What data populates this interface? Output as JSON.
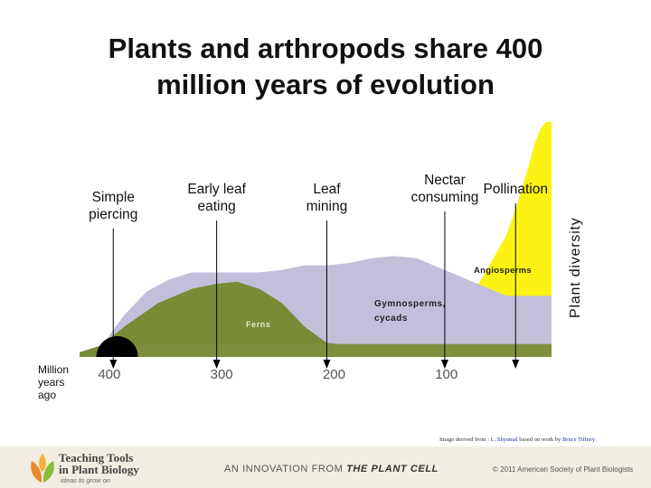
{
  "title_line1": "Plants and arthropods share 400",
  "title_line2": "million years of evolution",
  "chart_data": {
    "type": "area",
    "x_axis": {
      "label": [
        "Million",
        "years",
        "ago"
      ],
      "reversed": true,
      "range": [
        420,
        0
      ],
      "ticks": [
        "400",
        "300",
        "200",
        "100"
      ],
      "tick_values": [
        400,
        300,
        200,
        100
      ]
    },
    "y_axis": {
      "label": "Plant diversity",
      "range": [
        0,
        10
      ]
    },
    "series": [
      {
        "name": "Ferns",
        "color": "#788c36",
        "x": [
          420,
          400,
          380,
          350,
          320,
          300,
          280,
          260,
          240,
          220,
          200,
          180,
          160,
          140,
          120,
          100,
          80,
          60,
          40,
          20,
          0
        ],
        "y": [
          0.2,
          0.5,
          1.3,
          2.3,
          2.9,
          3.1,
          3.2,
          2.9,
          2.3,
          1.3,
          0.6,
          0.5,
          0.5,
          0.5,
          0.5,
          0.5,
          0.5,
          0.5,
          0.5,
          0.5,
          0.5
        ]
      },
      {
        "name": "Gymnosperms, cycads",
        "color": "#c3bfdb",
        "x": [
          420,
          400,
          380,
          360,
          340,
          320,
          300,
          280,
          260,
          240,
          220,
          200,
          180,
          160,
          140,
          120,
          100,
          80,
          60,
          40,
          20,
          0
        ],
        "y": [
          0.2,
          0.5,
          1.8,
          2.8,
          3.3,
          3.6,
          3.6,
          3.6,
          3.6,
          3.7,
          3.9,
          3.9,
          4.0,
          4.2,
          4.3,
          4.2,
          3.8,
          3.4,
          3.0,
          2.6,
          2.6,
          2.6
        ]
      },
      {
        "name": "Angiosperms",
        "color": "#fcf315",
        "x": [
          140,
          120,
          100,
          80,
          60,
          40,
          30,
          20,
          15,
          10,
          5,
          0
        ],
        "y": [
          0,
          0.2,
          0.8,
          2.0,
          3.5,
          5.2,
          6.6,
          8.2,
          9.1,
          9.7,
          10.0,
          10.0
        ]
      }
    ],
    "base_layer": {
      "color": "#7e8f3c",
      "from": 390,
      "to": 0,
      "height": 0.55
    },
    "origin_marker": {
      "x": 405,
      "color": "#000000"
    },
    "events": [
      {
        "label": [
          "Simple",
          "piercing"
        ],
        "x": 390
      },
      {
        "label": [
          "Early leaf",
          "eating"
        ],
        "x": 298
      },
      {
        "label": [
          "Leaf",
          "mining"
        ],
        "x": 200
      },
      {
        "label": [
          "Nectar",
          "consuming"
        ],
        "x": 95
      },
      {
        "label": [
          "Pollination"
        ],
        "x": 32
      }
    ]
  },
  "credit": {
    "prefix": "Image derived from :",
    "link1": "L. Shyamal",
    "mid": " based on work by ",
    "link2": "Bruce Tiffney"
  },
  "footer": {
    "brand_line1": "Teaching Tools",
    "brand_line2": "in Plant Biology",
    "tagline": "ideas to grow on",
    "innovation_prefix": "AN INNOVATION FROM ",
    "innovation_name": "THE PLANT CELL",
    "copyright": "© 2011 American Society of Plant Biologists"
  },
  "colors": {
    "ferns": "#788c36",
    "gymnosperms": "#c3bfdb",
    "angiosperms": "#fcf315",
    "arrow": "#000000"
  }
}
